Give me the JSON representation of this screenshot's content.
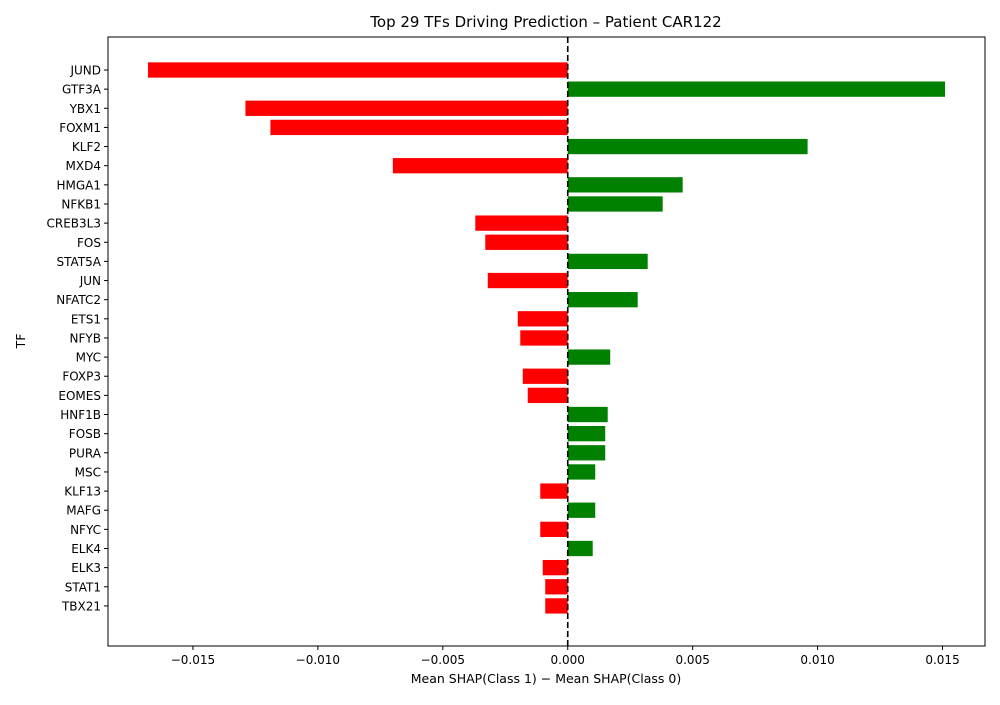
{
  "chart_data": {
    "type": "bar",
    "orientation": "horizontal",
    "title": "Top 29 TFs Driving Prediction – Patient CAR122",
    "xlabel": "Mean SHAP(Class 1) − Mean SHAP(Class 0)",
    "ylabel": "TF",
    "xlim": [
      -0.0184,
      0.0167
    ],
    "xticks": [
      -0.015,
      -0.01,
      -0.005,
      0.0,
      0.005,
      0.01,
      0.015
    ],
    "xtick_labels": [
      "−0.015",
      "−0.010",
      "−0.005",
      "0.000",
      "0.005",
      "0.010",
      "0.015"
    ],
    "reference_line": {
      "x": 0,
      "style": "dashed"
    },
    "grid": false,
    "colors": {
      "positive": "#008000",
      "negative": "#ff0000",
      "reference": "#000000"
    },
    "categories": [
      "JUND",
      "GTF3A",
      "YBX1",
      "FOXM1",
      "KLF2",
      "MXD4",
      "HMGA1",
      "NFKB1",
      "CREB3L3",
      "FOS",
      "STAT5A",
      "JUN",
      "NFATC2",
      "ETS1",
      "NFYB",
      "MYC",
      "FOXP3",
      "EOMES",
      "HNF1B",
      "FOSB",
      "PURA",
      "MSC",
      "KLF13",
      "MAFG",
      "NFYC",
      "ELK4",
      "ELK3",
      "STAT1",
      "TBX21"
    ],
    "values": [
      -0.0168,
      0.0151,
      -0.0129,
      -0.0119,
      0.0096,
      -0.007,
      0.0046,
      0.0038,
      -0.0037,
      -0.0033,
      0.0032,
      -0.0032,
      0.0028,
      -0.002,
      -0.0019,
      0.0017,
      -0.0018,
      -0.0016,
      0.0016,
      0.0015,
      0.0015,
      0.0011,
      -0.0011,
      0.0011,
      -0.0011,
      0.001,
      -0.001,
      -0.0009,
      -0.0009
    ]
  }
}
